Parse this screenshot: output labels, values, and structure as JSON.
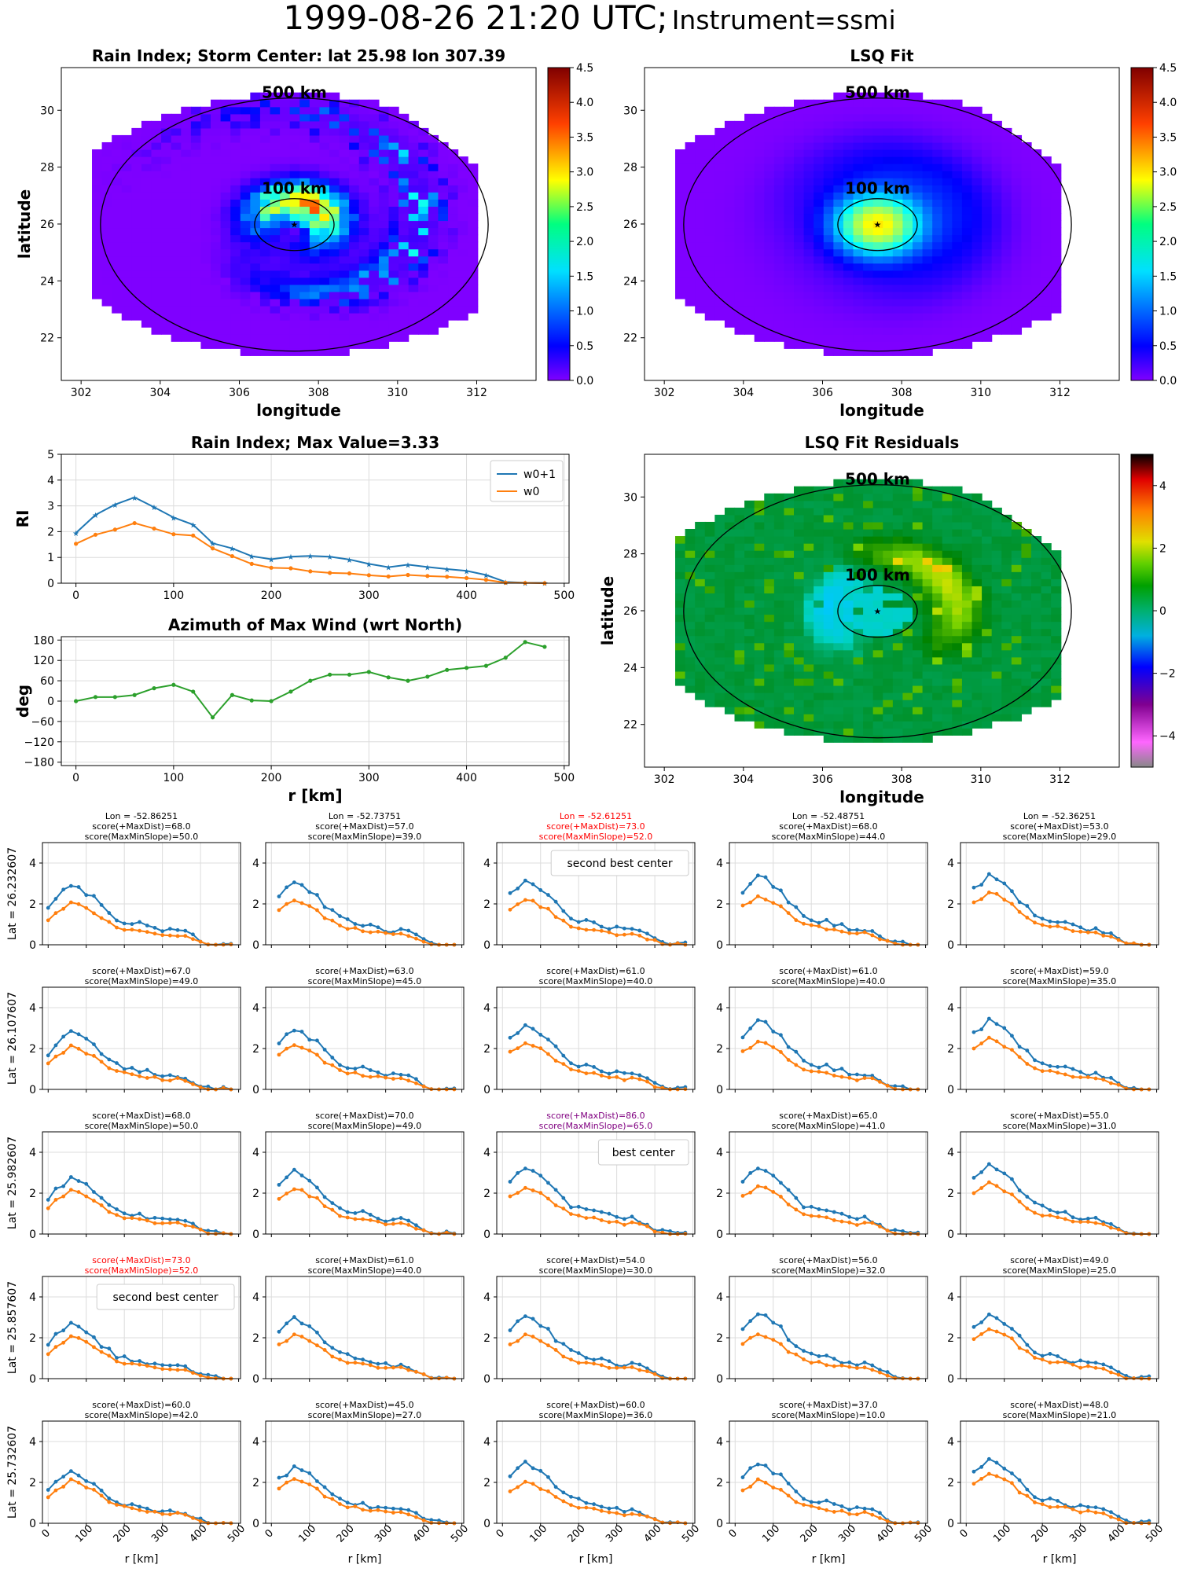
{
  "header": {
    "datetime": "1999-08-26 21:20 UTC;",
    "instrument": "Instrument=ssmi"
  },
  "colors": {
    "blue": "#1f77b4",
    "orange": "#ff7f0e",
    "green": "#2ca02c",
    "red": "#ff0000",
    "purple": "#800080"
  },
  "chart_data": [
    {
      "type": "heatmap",
      "id": "rain-index-map",
      "title": "Rain Index; Storm Center: lat 25.98 lon 307.39",
      "xlabel": "longitude",
      "ylabel": "latitude",
      "xlim": [
        301.5,
        313.5
      ],
      "ylim": [
        20.5,
        31.5
      ],
      "xticks": [
        "302",
        "304",
        "306",
        "308",
        "310",
        "312"
      ],
      "yticks": [
        "22",
        "24",
        "26",
        "28",
        "30"
      ],
      "colorbar": {
        "min": 0,
        "max": 4.5,
        "colormap": "jet",
        "ticks": [
          "0.0",
          "0.5",
          "1.0",
          "1.5",
          "2.0",
          "2.5",
          "3.0",
          "3.5",
          "4.0",
          "4.5"
        ]
      },
      "storm_center": {
        "lon": 307.39,
        "lat": 25.98
      },
      "annotations": [
        "500 km",
        "100 km"
      ]
    },
    {
      "type": "heatmap",
      "id": "lsq-fit-map",
      "title": "LSQ Fit",
      "xlabel": "longitude",
      "ylabel": "",
      "xlim": [
        301.5,
        313.5
      ],
      "ylim": [
        20.5,
        31.5
      ],
      "xticks": [
        "302",
        "304",
        "306",
        "308",
        "310",
        "312"
      ],
      "yticks": [
        "22",
        "24",
        "26",
        "28",
        "30"
      ],
      "colorbar": {
        "min": 0,
        "max": 4.5,
        "colormap": "jet",
        "ticks": [
          "0.0",
          "0.5",
          "1.0",
          "1.5",
          "2.0",
          "2.5",
          "3.0",
          "3.5",
          "4.0",
          "4.5"
        ]
      },
      "annotations": [
        "500 km",
        "100 km"
      ]
    },
    {
      "type": "line",
      "id": "rain-index-profile",
      "title": "Rain Index; Max Value=3.33",
      "ylabel": "RI",
      "xlim": [
        -15,
        505
      ],
      "ylim": [
        0,
        5
      ],
      "xticks": [
        "0",
        "100",
        "200",
        "300",
        "400",
        "500"
      ],
      "yticks": [
        "0",
        "1",
        "2",
        "3",
        "4",
        "5"
      ],
      "legend": "top-right",
      "x": [
        0,
        20,
        40,
        60,
        80,
        100,
        120,
        140,
        160,
        180,
        200,
        220,
        240,
        260,
        280,
        300,
        320,
        340,
        360,
        380,
        400,
        420,
        440,
        460,
        480
      ],
      "series": [
        {
          "name": "w0+1",
          "values": [
            1.95,
            2.65,
            3.05,
            3.33,
            2.95,
            2.55,
            2.27,
            1.55,
            1.35,
            1.05,
            0.93,
            1.03,
            1.06,
            1.03,
            0.92,
            0.75,
            0.62,
            0.72,
            0.63,
            0.55,
            0.48,
            0.32,
            0.05,
            0.02,
            0.01
          ]
        },
        {
          "name": "w0",
          "values": [
            1.53,
            1.88,
            2.08,
            2.33,
            2.12,
            1.9,
            1.85,
            1.35,
            1.05,
            0.75,
            0.6,
            0.58,
            0.46,
            0.4,
            0.38,
            0.31,
            0.26,
            0.32,
            0.28,
            0.25,
            0.2,
            0.13,
            0.02,
            0.01,
            0.0
          ]
        }
      ]
    },
    {
      "type": "line",
      "id": "azimuth-max-wind",
      "title": "Azimuth of Max Wind (wrt North)",
      "xlabel": "r [km]",
      "ylabel": "deg",
      "xlim": [
        -15,
        505
      ],
      "ylim": [
        -190,
        190
      ],
      "xticks": [
        "0",
        "100",
        "200",
        "300",
        "400",
        "500"
      ],
      "yticks": [
        "−180",
        "−120",
        "−60",
        "0",
        "60",
        "120",
        "180"
      ],
      "x": [
        0,
        20,
        40,
        60,
        80,
        100,
        120,
        140,
        160,
        180,
        200,
        220,
        240,
        260,
        280,
        300,
        320,
        340,
        360,
        380,
        400,
        420,
        440,
        460,
        480
      ],
      "series": [
        {
          "values": [
            0,
            12,
            12,
            18,
            38,
            48,
            28,
            -48,
            18,
            2,
            0,
            28,
            60,
            78,
            78,
            86,
            70,
            60,
            72,
            92,
            98,
            104,
            128,
            174,
            160
          ]
        }
      ]
    },
    {
      "type": "heatmap",
      "id": "lsq-residual-map",
      "title": "LSQ Fit Residuals",
      "xlabel": "longitude",
      "ylabel": "latitude",
      "xlim": [
        301.5,
        313.5
      ],
      "ylim": [
        20.5,
        31.5
      ],
      "xticks": [
        "302",
        "304",
        "306",
        "308",
        "310",
        "312"
      ],
      "yticks": [
        "22",
        "24",
        "26",
        "28",
        "30"
      ],
      "colorbar": {
        "min": -5,
        "max": 5,
        "colormap": "nipy_spectral",
        "ticks": [
          "−4",
          "−2",
          "0",
          "2",
          "4"
        ]
      },
      "annotations": [
        "500 km",
        "100 km"
      ]
    }
  ],
  "grid_panels": {
    "xlabel": "r [km]",
    "xticks": [
      "0",
      "100",
      "200",
      "300",
      "400",
      "500"
    ],
    "yticks": [
      "0",
      "2",
      "4"
    ],
    "xlim": [
      -15,
      505
    ],
    "ylim": [
      0,
      5
    ],
    "x": [
      0,
      20,
      40,
      60,
      80,
      100,
      120,
      140,
      160,
      180,
      200,
      220,
      240,
      260,
      280,
      300,
      320,
      340,
      360,
      380,
      400,
      420,
      440,
      460,
      480
    ],
    "lon_labels": [
      "Lon = -52.86251",
      "Lon = -52.73751",
      "Lon = -52.61251",
      "Lon = -52.48751",
      "Lon = -52.36251"
    ],
    "lat_labels": [
      "Lat = 26.232607",
      "Lat = 26.107607",
      "Lat = 25.982607",
      "Lat = 25.857607",
      "Lat = 25.732607"
    ],
    "scores": [
      [
        [
          "score(+MaxDist)=68.0",
          "score(MaxMinSlope)=50.0"
        ],
        [
          "score(+MaxDist)=57.0",
          "score(MaxMinSlope)=39.0"
        ],
        [
          "score(+MaxDist)=73.0",
          "score(MaxMinSlope)=52.0"
        ],
        [
          "score(+MaxDist)=68.0",
          "score(MaxMinSlope)=44.0"
        ],
        [
          "score(+MaxDist)=53.0",
          "score(MaxMinSlope)=29.0"
        ]
      ],
      [
        [
          "score(+MaxDist)=67.0",
          "score(MaxMinSlope)=49.0"
        ],
        [
          "score(+MaxDist)=63.0",
          "score(MaxMinSlope)=45.0"
        ],
        [
          "score(+MaxDist)=61.0",
          "score(MaxMinSlope)=40.0"
        ],
        [
          "score(+MaxDist)=61.0",
          "score(MaxMinSlope)=40.0"
        ],
        [
          "score(+MaxDist)=59.0",
          "score(MaxMinSlope)=35.0"
        ]
      ],
      [
        [
          "score(+MaxDist)=68.0",
          "score(MaxMinSlope)=50.0"
        ],
        [
          "score(+MaxDist)=70.0",
          "score(MaxMinSlope)=49.0"
        ],
        [
          "score(+MaxDist)=86.0",
          "score(MaxMinSlope)=65.0"
        ],
        [
          "score(+MaxDist)=65.0",
          "score(MaxMinSlope)=41.0"
        ],
        [
          "score(+MaxDist)=55.0",
          "score(MaxMinSlope)=31.0"
        ]
      ],
      [
        [
          "score(+MaxDist)=73.0",
          "score(MaxMinSlope)=52.0"
        ],
        [
          "score(+MaxDist)=61.0",
          "score(MaxMinSlope)=40.0"
        ],
        [
          "score(+MaxDist)=54.0",
          "score(MaxMinSlope)=30.0"
        ],
        [
          "score(+MaxDist)=56.0",
          "score(MaxMinSlope)=32.0"
        ],
        [
          "score(+MaxDist)=49.0",
          "score(MaxMinSlope)=25.0"
        ]
      ],
      [
        [
          "score(+MaxDist)=60.0",
          "score(MaxMinSlope)=42.0"
        ],
        [
          "score(+MaxDist)=45.0",
          "score(MaxMinSlope)=27.0"
        ],
        [
          "score(+MaxDist)=60.0",
          "score(MaxMinSlope)=36.0"
        ],
        [
          "score(+MaxDist)=37.0",
          "score(MaxMinSlope)=10.0"
        ],
        [
          "score(+MaxDist)=48.0",
          "score(MaxMinSlope)=21.0"
        ]
      ]
    ],
    "highlights": [
      {
        "row": 0,
        "col": 2,
        "color": "red",
        "legend": "second best center"
      },
      {
        "row": 2,
        "col": 2,
        "color": "purple",
        "legend": "best center"
      },
      {
        "row": 3,
        "col": 0,
        "color": "red",
        "legend": "second best center"
      }
    ],
    "series_peaks": [
      [
        [
          3.0,
          2.05
        ],
        [
          3.1,
          2.2
        ],
        [
          3.2,
          2.25
        ],
        [
          3.35,
          2.4
        ],
        [
          3.45,
          2.6
        ]
      ],
      [
        [
          2.8,
          2.1
        ],
        [
          3.0,
          2.2
        ],
        [
          3.2,
          2.3
        ],
        [
          3.35,
          2.35
        ],
        [
          3.45,
          2.5
        ]
      ],
      [
        [
          2.75,
          2.15
        ],
        [
          3.05,
          2.25
        ],
        [
          3.3,
          2.3
        ],
        [
          3.3,
          2.35
        ],
        [
          3.4,
          2.5
        ]
      ],
      [
        [
          2.7,
          2.05
        ],
        [
          2.95,
          2.15
        ],
        [
          3.1,
          2.15
        ],
        [
          3.25,
          2.2
        ],
        [
          3.2,
          2.45
        ]
      ],
      [
        [
          2.5,
          2.1
        ],
        [
          2.75,
          2.2
        ],
        [
          2.95,
          2.0
        ],
        [
          3.0,
          2.1
        ],
        [
          3.2,
          2.45
        ]
      ]
    ]
  }
}
